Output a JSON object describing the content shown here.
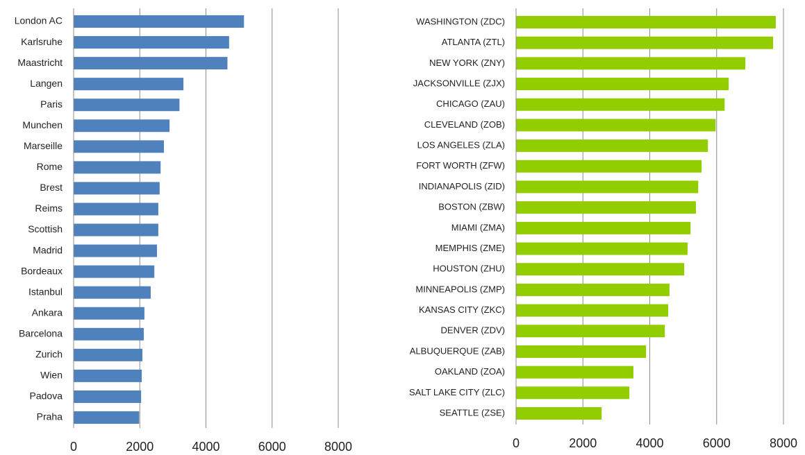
{
  "chart_data": [
    {
      "type": "bar",
      "orientation": "horizontal",
      "color": "#4f81bd",
      "grid": true,
      "categories": [
        "London AC",
        "Karlsruhe",
        "Maastricht",
        "Langen",
        "Paris",
        "Munchen",
        "Marseille",
        "Rome",
        "Brest",
        "Reims",
        "Scottish",
        "Madrid",
        "Bordeaux",
        "Istanbul",
        "Ankara",
        "Barcelona",
        "Zurich",
        "Wien",
        "Padova",
        "Praha"
      ],
      "values": [
        5150,
        4700,
        4650,
        3320,
        3200,
        2900,
        2730,
        2630,
        2600,
        2560,
        2560,
        2520,
        2440,
        2330,
        2140,
        2120,
        2080,
        2060,
        2040,
        1980
      ],
      "xlim": [
        0,
        8000
      ],
      "xticks": [
        0,
        2000,
        4000,
        6000,
        8000
      ]
    },
    {
      "type": "bar",
      "orientation": "horizontal",
      "color": "#92cd00",
      "grid": true,
      "categories": [
        "WASHINGTON (ZDC)",
        "ATLANTA (ZTL)",
        "NEW YORK (ZNY)",
        "JACKSONVILLE (ZJX)",
        "CHICAGO (ZAU)",
        "CLEVELAND (ZOB)",
        "LOS ANGELES (ZLA)",
        "FORT WORTH (ZFW)",
        "INDIANAPOLIS (ZID)",
        "BOSTON (ZBW)",
        "MIAMI (ZMA)",
        "MEMPHIS (ZME)",
        "HOUSTON (ZHU)",
        "MINNEAPOLIS (ZMP)",
        "KANSAS CITY (ZKC)",
        "DENVER (ZDV)",
        "ALBUQUERQUE (ZAB)",
        "OAKLAND (ZOA)",
        "SALT LAKE CITY (ZLC)",
        "SEATTLE (ZSE)"
      ],
      "values": [
        7770,
        7690,
        6860,
        6360,
        6240,
        5970,
        5740,
        5550,
        5450,
        5380,
        5220,
        5130,
        5030,
        4590,
        4550,
        4450,
        3890,
        3510,
        3390,
        2560
      ],
      "xlim": [
        0,
        8000
      ],
      "xticks": [
        0,
        2000,
        4000,
        6000,
        8000
      ]
    }
  ]
}
